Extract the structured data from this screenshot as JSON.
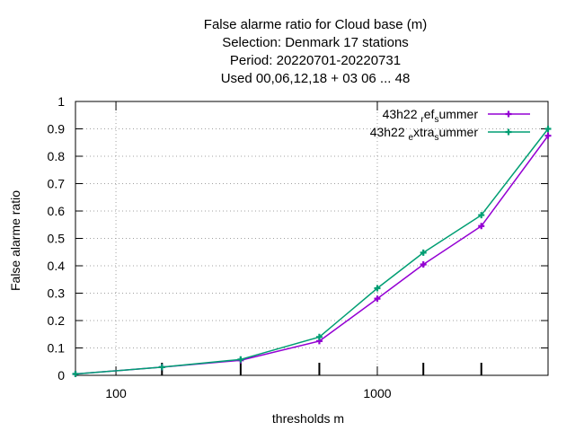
{
  "chart_data": {
    "type": "line",
    "title_lines": [
      "False alarme ratio  for Cloud base (m)",
      "Selection: Denmark      17 stations",
      "Period: 20220701-20220731",
      "Used  00,06,12,18  + 03 06 ... 48"
    ],
    "xlabel": "thresholds m",
    "ylabel": "False alarme ratio",
    "xscale": "log",
    "xlim": [
      70,
      4500
    ],
    "ylim": [
      0,
      1
    ],
    "xticks": [
      100,
      1000
    ],
    "xtick_labels": [
      "100",
      "1000"
    ],
    "yticks": [
      0,
      0.1,
      0.2,
      0.3,
      0.4,
      0.5,
      0.6,
      0.7,
      0.8,
      0.9,
      1
    ],
    "ytick_labels": [
      "0",
      "0.1",
      "0.2",
      "0.3",
      "0.4",
      "0.5",
      "0.6",
      "0.7",
      "0.8",
      "0.9",
      "1"
    ],
    "grid": true,
    "legend_position": "top-right",
    "series": [
      {
        "name_main": "43h22",
        "name_parts": [
          {
            "text": "r",
            "shift": "sub"
          },
          {
            "text": "ef",
            "shift": "none"
          },
          {
            "text": "s",
            "shift": "sub"
          },
          {
            "text": "ummer",
            "shift": "none"
          }
        ],
        "color": "#9400d3",
        "x": [
          70,
          150,
          300,
          600,
          1000,
          1500,
          2500,
          4500
        ],
        "y": [
          0.005,
          0.03,
          0.055,
          0.125,
          0.28,
          0.405,
          0.545,
          0.875
        ]
      },
      {
        "name_main": "43h22",
        "name_parts": [
          {
            "text": "e",
            "shift": "sub"
          },
          {
            "text": "xtra",
            "shift": "none"
          },
          {
            "text": "s",
            "shift": "sub"
          },
          {
            "text": "ummer",
            "shift": "none"
          }
        ],
        "color": "#009e73",
        "x": [
          70,
          150,
          300,
          600,
          1000,
          1500,
          2500,
          4500
        ],
        "y": [
          0.005,
          0.03,
          0.058,
          0.14,
          0.318,
          0.448,
          0.585,
          0.9
        ]
      }
    ]
  }
}
